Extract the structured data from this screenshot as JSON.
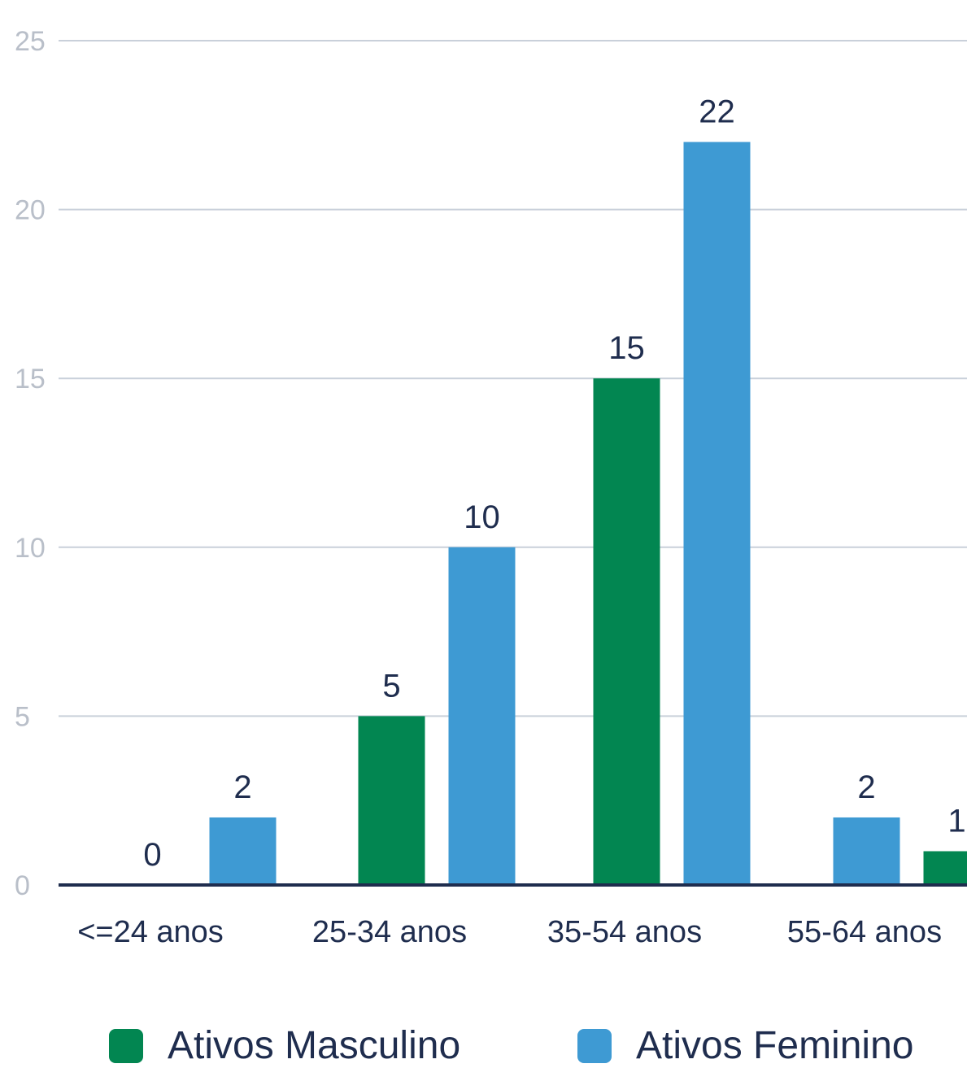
{
  "chart_data": {
    "type": "bar",
    "categories": [
      "<=24 anos",
      "25-34 anos",
      "35-54 anos",
      "55-64 anos"
    ],
    "bars": [
      [
        {
          "series": 0,
          "value": 0
        },
        {
          "series": 1,
          "value": 2
        }
      ],
      [
        {
          "series": 0,
          "value": 5
        },
        {
          "series": 1,
          "value": 10
        }
      ],
      [
        {
          "series": 0,
          "value": 15
        },
        {
          "series": 1,
          "value": 22
        }
      ],
      [
        {
          "series": 1,
          "value": 2
        },
        {
          "series": 0,
          "value": 1
        }
      ]
    ],
    "series": [
      {
        "name": "Ativos Masculino",
        "color": "#028651"
      },
      {
        "name": "Ativos Feminino",
        "color": "#3e9ad3"
      }
    ],
    "yticks": [
      0,
      5,
      10,
      15,
      20,
      25
    ],
    "ylim": [
      0,
      25
    ],
    "grid": true,
    "legend": "bottom"
  }
}
